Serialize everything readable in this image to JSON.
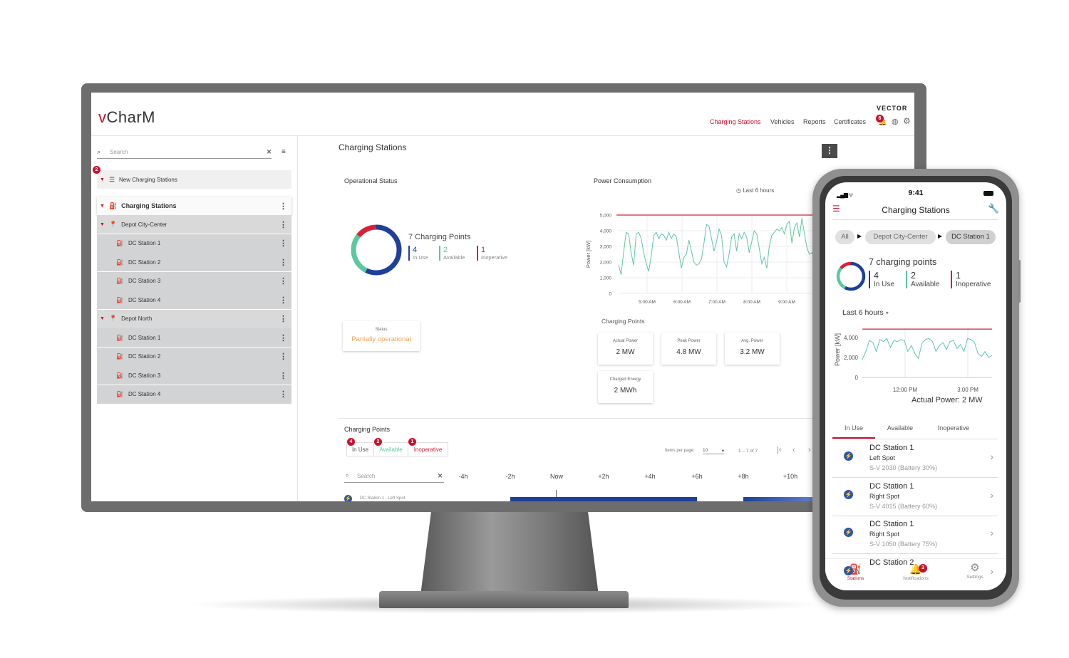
{
  "desktop": {
    "logo": {
      "prefix": "v",
      "rest": "CharM"
    },
    "brand": "VECTOR",
    "nav": [
      {
        "label": "Charging Stations",
        "active": true
      },
      {
        "label": "Vehicles"
      },
      {
        "label": "Reports"
      },
      {
        "label": "Certificates"
      }
    ],
    "notif_count": "6",
    "sidebar": {
      "search_placeholder": "Search",
      "new_group": {
        "badge": "2",
        "label": "New Charging Stations"
      },
      "root": "Charging Stations",
      "depots": [
        {
          "label": "Depot City-Center",
          "stations": [
            "DC Station 1",
            "DC Station 2",
            "DC Station 3",
            "DC Station 4"
          ]
        },
        {
          "label": "Depot North",
          "stations": [
            "DC Station 1",
            "DC Station 2",
            "DC Station 3",
            "DC Station 4"
          ]
        }
      ]
    },
    "main": {
      "title": "Charging Stations",
      "operational_status": {
        "title": "Operational Status",
        "total": "7 Charging Points",
        "counts": [
          {
            "value": "4",
            "label": "In Use",
            "color": "#1e3f9a"
          },
          {
            "value": "2",
            "label": "Available",
            "color": "#5bc8a0"
          },
          {
            "value": "1",
            "label": "Inoperative",
            "color": "#d6213a"
          }
        ],
        "status_label": "Status",
        "status_value": "Partially operational"
      },
      "power": {
        "title": "Power Consumption",
        "range": "Last 6 hours",
        "ylabel": "Power [kW]",
        "yticks": [
          "5,000",
          "4,000",
          "3,000",
          "2,000",
          "1,000",
          "0"
        ],
        "xticks": [
          "5:00 AM",
          "6:00 AM",
          "7:00 AM",
          "8:00 AM",
          "9:00 AM"
        ]
      },
      "charging_points_kpi": {
        "title": "Charging Points",
        "items": [
          {
            "label": "Actual Power",
            "value": "2 MW"
          },
          {
            "label": "Peak Power",
            "value": "4.8 MW"
          },
          {
            "label": "Avg. Power",
            "value": "3.2 MW"
          },
          {
            "label": "Charged Energy",
            "value": "2 MWh"
          }
        ]
      },
      "cp_section": {
        "title": "Charging Points",
        "tabs": [
          {
            "badge": "4",
            "label": "In Use"
          },
          {
            "badge": "2",
            "label": "Available"
          },
          {
            "badge": "1",
            "label": "Inoperative"
          }
        ],
        "items_per_page_label": "Items per page:",
        "items_per_page": "10",
        "range": "1 – 7 of 7",
        "search_placeholder": "Search",
        "timeline": [
          "-4h",
          "-2h",
          "Now",
          "+2h",
          "+4h",
          "+6h",
          "+8h",
          "+10h"
        ],
        "first_row": "DC Station 1 - Left Spot"
      }
    }
  },
  "phone": {
    "time": "9:41",
    "title": "Charging Stations",
    "breadcrumb": [
      "All",
      "Depot City-Center",
      "DC Station 1"
    ],
    "total": "7 charging points",
    "counts": [
      {
        "value": "4",
        "label": "In Use"
      },
      {
        "value": "2",
        "label": "Available"
      },
      {
        "value": "1",
        "label": "Inoperative"
      }
    ],
    "range": "Last 6 hours",
    "ylabel": "Power [kW]",
    "yticks": [
      "4,000",
      "2,000",
      "0"
    ],
    "xticks": [
      "12:00 PM",
      "3:00 PM"
    ],
    "actual_power_label": "Actual Power:",
    "actual_power_value": "2  MW",
    "tabs": [
      "In Use",
      "Available",
      "Inoperative"
    ],
    "list": [
      {
        "title": "DC Station 1",
        "spot": "Left Spot",
        "vehicle": "S-V 2030 (Battery 30%)"
      },
      {
        "title": "DC Station 1",
        "spot": "Right Spot",
        "vehicle": "S-V 4015 (Battery 60%)"
      },
      {
        "title": "DC Station 1",
        "spot": "Right Spot",
        "vehicle": "S-V 1050 (Battery 75%)"
      },
      {
        "title": "DC Station 2",
        "spot": "",
        "vehicle": ""
      }
    ],
    "bottom_nav": [
      {
        "label": "Stations",
        "active": true
      },
      {
        "label": "Notifications",
        "badge": "3"
      },
      {
        "label": "Settings"
      }
    ]
  },
  "colors": {
    "accent": "#c8102e",
    "in_use": "#1e3f9a",
    "available": "#5bc8a0",
    "inoperative": "#d6213a",
    "line": "#5fc79d"
  }
}
